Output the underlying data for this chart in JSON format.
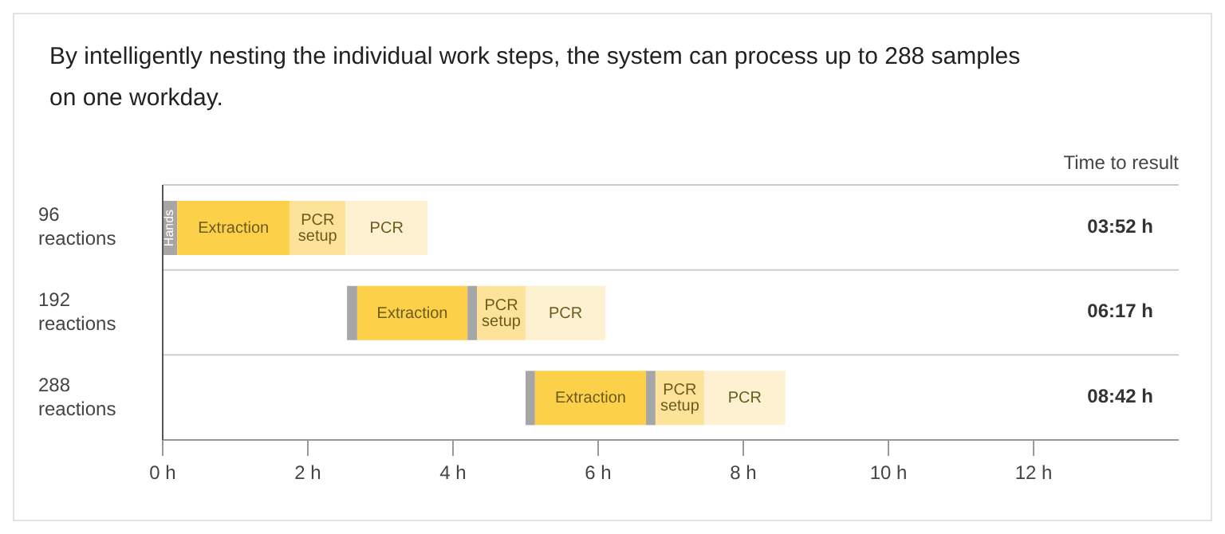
{
  "chart_data": {
    "type": "bar",
    "orientation": "horizontal",
    "title": "By intelligently nesting the individual work steps, the system can process up to 288 samples on one workday.",
    "annotations": [
      "Time to result",
      "03:52 h",
      "06:17 h",
      "08:42 h"
    ],
    "categories": [
      "96 reactions",
      "192 reactions",
      "288 reactions"
    ],
    "series": [
      {
        "color": "#a6a6a6",
        "base": [
          0,
          2.54,
          5.0
        ],
        "values": [
          0.2,
          0.14,
          0.13
        ],
        "value_labels": [
          "Hands",
          null,
          null
        ]
      },
      {
        "color": "#fdd04a",
        "base": [
          0.2,
          2.68,
          5.13
        ],
        "values": [
          1.55,
          1.52,
          1.53
        ],
        "value_labels": [
          "Extraction",
          "Extraction",
          "Extraction"
        ]
      },
      {
        "color": "#a6a6a6",
        "base": [
          null,
          4.2,
          6.66
        ],
        "values": [
          null,
          0.13,
          0.13
        ]
      },
      {
        "color": "#fde39a",
        "base": [
          1.75,
          4.33,
          6.79
        ],
        "values": [
          0.77,
          0.67,
          0.67
        ],
        "value_labels": [
          "PCR setup",
          "PCR setup",
          "PCR setup"
        ]
      },
      {
        "color": "#fef1d2",
        "base": [
          2.52,
          5.0,
          7.46
        ],
        "values": [
          1.13,
          1.1,
          1.12
        ],
        "value_labels": [
          "PCR",
          "PCR",
          "PCR"
        ]
      }
    ],
    "xlim": [
      0,
      14
    ],
    "xticks": [
      {
        "value": 0,
        "label": "0 h"
      },
      {
        "value": 2,
        "label": "2 h"
      },
      {
        "value": 4,
        "label": "4 h"
      },
      {
        "value": 6,
        "label": "6 h"
      },
      {
        "value": 8,
        "label": "8 h"
      },
      {
        "value": 10,
        "label": "10 h"
      },
      {
        "value": 12,
        "label": "12 h"
      }
    ],
    "grid": "y"
  }
}
